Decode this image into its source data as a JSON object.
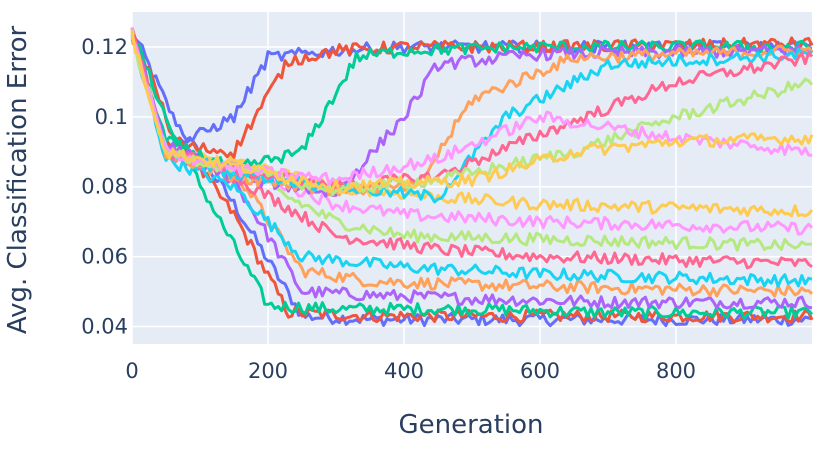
{
  "chart_data": {
    "type": "line",
    "title": "",
    "xlabel": "Generation",
    "ylabel": "Avg. Classification Error",
    "xlim": [
      0,
      1000
    ],
    "ylim": [
      0.035,
      0.13
    ],
    "x_ticks": [
      0,
      200,
      400,
      600,
      800
    ],
    "x_tick_labels": [
      "0",
      "200",
      "400",
      "600",
      "800"
    ],
    "y_ticks": [
      0.04,
      0.06,
      0.08,
      0.1,
      0.12
    ],
    "y_tick_labels": [
      "0.04",
      "0.06",
      "0.08",
      "0.1",
      "0.12"
    ],
    "grid": true,
    "legend": "none",
    "plot_bg": "#e5ecf6",
    "grid_color": "#ffffff",
    "series_colors": [
      "#636efa",
      "#ef553b",
      "#00cc96",
      "#ab63fa",
      "#ffa15a",
      "#19d3f3",
      "#ff6692",
      "#b6e880",
      "#ff97ff",
      "#fecb52"
    ],
    "series": [
      {
        "x": [
          0,
          60,
          150,
          250,
          350,
          500,
          700,
          1000
        ],
        "values": [
          0.125,
          0.1,
          0.075,
          0.043,
          0.042,
          0.042,
          0.042,
          0.042
        ]
      },
      {
        "x": [
          0,
          60,
          150,
          230,
          350,
          500,
          700,
          1000
        ],
        "values": [
          0.125,
          0.095,
          0.072,
          0.044,
          0.043,
          0.043,
          0.043,
          0.043
        ]
      },
      {
        "x": [
          0,
          60,
          130,
          200,
          300,
          500,
          700,
          1000
        ],
        "values": [
          0.124,
          0.095,
          0.07,
          0.046,
          0.045,
          0.045,
          0.044,
          0.044
        ]
      },
      {
        "x": [
          0,
          50,
          150,
          250,
          350,
          500,
          700,
          1000
        ],
        "values": [
          0.123,
          0.09,
          0.082,
          0.05,
          0.049,
          0.048,
          0.047,
          0.047
        ]
      },
      {
        "x": [
          0,
          50,
          150,
          250,
          350,
          500,
          700,
          1000
        ],
        "values": [
          0.122,
          0.09,
          0.085,
          0.056,
          0.053,
          0.052,
          0.051,
          0.05
        ]
      },
      {
        "x": [
          0,
          50,
          150,
          250,
          400,
          600,
          800,
          1000
        ],
        "values": [
          0.123,
          0.088,
          0.08,
          0.06,
          0.057,
          0.055,
          0.054,
          0.053
        ]
      },
      {
        "x": [
          0,
          50,
          150,
          300,
          450,
          600,
          800,
          1000
        ],
        "values": [
          0.124,
          0.09,
          0.083,
          0.066,
          0.062,
          0.06,
          0.059,
          0.058
        ]
      },
      {
        "x": [
          0,
          50,
          150,
          300,
          400,
          600,
          800,
          1000
        ],
        "values": [
          0.124,
          0.09,
          0.085,
          0.07,
          0.066,
          0.065,
          0.064,
          0.063
        ]
      },
      {
        "x": [
          0,
          50,
          150,
          300,
          400,
          600,
          800,
          1000
        ],
        "values": [
          0.125,
          0.09,
          0.086,
          0.075,
          0.072,
          0.07,
          0.069,
          0.068
        ]
      },
      {
        "x": [
          0,
          50,
          150,
          300,
          450,
          600,
          800,
          1000
        ],
        "values": [
          0.125,
          0.09,
          0.087,
          0.08,
          0.077,
          0.075,
          0.074,
          0.073
        ]
      },
      {
        "x": [
          0,
          50,
          150,
          200,
          300,
          400,
          600,
          1000
        ],
        "values": [
          0.124,
          0.09,
          0.1,
          0.117,
          0.119,
          0.12,
          0.12,
          0.12
        ]
      },
      {
        "x": [
          0,
          50,
          150,
          230,
          300,
          400,
          600,
          1000
        ],
        "values": [
          0.124,
          0.092,
          0.09,
          0.116,
          0.119,
          0.12,
          0.12,
          0.121
        ]
      },
      {
        "x": [
          0,
          50,
          150,
          250,
          330,
          400,
          600,
          1000
        ],
        "values": [
          0.123,
          0.093,
          0.085,
          0.09,
          0.117,
          0.119,
          0.12,
          0.12
        ]
      },
      {
        "x": [
          0,
          50,
          150,
          300,
          400,
          450,
          600,
          1000
        ],
        "values": [
          0.124,
          0.092,
          0.083,
          0.078,
          0.1,
          0.115,
          0.118,
          0.119
        ]
      },
      {
        "x": [
          0,
          50,
          150,
          300,
          420,
          500,
          650,
          1000
        ],
        "values": [
          0.123,
          0.09,
          0.083,
          0.079,
          0.08,
          0.105,
          0.117,
          0.119
        ]
      },
      {
        "x": [
          0,
          50,
          150,
          300,
          450,
          550,
          700,
          1000
        ],
        "values": [
          0.123,
          0.09,
          0.084,
          0.08,
          0.077,
          0.1,
          0.115,
          0.118
        ]
      },
      {
        "x": [
          0,
          50,
          150,
          300,
          450,
          600,
          800,
          1000
        ],
        "values": [
          0.124,
          0.09,
          0.085,
          0.08,
          0.083,
          0.095,
          0.11,
          0.117
        ]
      },
      {
        "x": [
          0,
          50,
          150,
          300,
          450,
          650,
          800,
          1000
        ],
        "values": [
          0.123,
          0.09,
          0.085,
          0.079,
          0.082,
          0.09,
          0.1,
          0.11
        ]
      },
      {
        "x": [
          0,
          50,
          150,
          300,
          450,
          600,
          800,
          1000
        ],
        "values": [
          0.123,
          0.09,
          0.085,
          0.082,
          0.088,
          0.1,
          0.094,
          0.09
        ]
      },
      {
        "x": [
          0,
          50,
          150,
          300,
          500,
          650,
          800,
          1000
        ],
        "values": [
          0.123,
          0.09,
          0.086,
          0.08,
          0.082,
          0.09,
          0.093,
          0.094
        ]
      }
    ]
  }
}
